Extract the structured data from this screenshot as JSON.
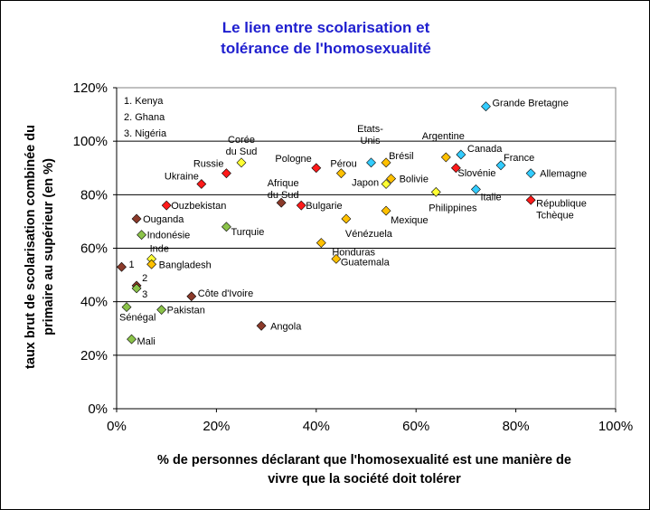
{
  "chart_data": {
    "type": "scatter",
    "title": [
      "Le lien entre scolarisation et",
      "tolérance de l'homosexualité"
    ],
    "xlabel": [
      "% de personnes déclarant que l'homosexualité est une manière de",
      "vivre que la société doit tolérer"
    ],
    "ylabel": [
      "taux brut de scolarisation combinée du",
      "primaire au supérieur (en %)"
    ],
    "xlim": [
      0,
      100
    ],
    "ylim": [
      0,
      120
    ],
    "x_ticks": [
      0,
      20,
      40,
      60,
      80,
      100
    ],
    "x_tick_labels": [
      "0%",
      "20%",
      "40%",
      "60%",
      "80%",
      "100%"
    ],
    "y_ticks": [
      0,
      20,
      40,
      60,
      80,
      100,
      120
    ],
    "y_tick_labels": [
      "0%",
      "20%",
      "40%",
      "60%",
      "80%",
      "100%",
      "120%"
    ],
    "grid": "horizontal",
    "legend_notes": [
      "1. Kenya",
      "2. Ghana",
      "3. Nigéria"
    ],
    "colors": {
      "dark_red": "#8b3a2a",
      "green": "#8bc34a",
      "red": "#ff1a1a",
      "orange": "#ffc000",
      "yellow": "#ffff33",
      "blue": "#33ccff"
    },
    "points": [
      {
        "label": "1",
        "x": 1,
        "y": 53,
        "color": "dark_red"
      },
      {
        "label": "2",
        "x": 4,
        "y": 46,
        "color": "dark_red"
      },
      {
        "label": "3",
        "x": 4,
        "y": 45,
        "color": "green"
      },
      {
        "label": "Ouganda",
        "x": 4,
        "y": 71,
        "color": "dark_red"
      },
      {
        "label": "Indonésie",
        "x": 5,
        "y": 65,
        "color": "green"
      },
      {
        "label": "Sénégal",
        "x": 2,
        "y": 38,
        "color": "green"
      },
      {
        "label": "Mali",
        "x": 3,
        "y": 26,
        "color": "green"
      },
      {
        "label": "Inde",
        "x": 7,
        "y": 56,
        "color": "yellow"
      },
      {
        "label": "Bangladesh",
        "x": 7,
        "y": 54,
        "color": "orange"
      },
      {
        "label": "Pakistan",
        "x": 9,
        "y": 37,
        "color": "green"
      },
      {
        "label": "Ouzbekistan",
        "x": 10,
        "y": 76,
        "color": "red"
      },
      {
        "label": "Côte d'Ivoire",
        "x": 15,
        "y": 42,
        "color": "dark_red"
      },
      {
        "label": "Ukraine",
        "x": 17,
        "y": 84,
        "color": "red"
      },
      {
        "label": "Russie",
        "x": 22,
        "y": 88,
        "color": "red"
      },
      {
        "label": "Turquie",
        "x": 22,
        "y": 68,
        "color": "green"
      },
      {
        "label": "Corée du Sud",
        "x": 25,
        "y": 92,
        "color": "yellow"
      },
      {
        "label": "Angola",
        "x": 29,
        "y": 31,
        "color": "dark_red"
      },
      {
        "label": "Afrique du Sud",
        "x": 33,
        "y": 77,
        "color": "dark_red"
      },
      {
        "label": "Bulgarie",
        "x": 37,
        "y": 76,
        "color": "red"
      },
      {
        "label": "Pologne",
        "x": 40,
        "y": 90,
        "color": "red"
      },
      {
        "label": "Honduras",
        "x": 41,
        "y": 62,
        "color": "orange"
      },
      {
        "label": "Guatemala",
        "x": 44,
        "y": 56,
        "color": "orange"
      },
      {
        "label": "Pérou",
        "x": 45,
        "y": 88,
        "color": "orange"
      },
      {
        "label": "Vénézuela",
        "x": 46,
        "y": 71,
        "color": "orange"
      },
      {
        "label": "Etats-Unis",
        "x": 51,
        "y": 92,
        "color": "blue"
      },
      {
        "label": "Japon",
        "x": 54,
        "y": 84,
        "color": "yellow"
      },
      {
        "label": "Brésil",
        "x": 54,
        "y": 92,
        "color": "orange"
      },
      {
        "label": "Mexique",
        "x": 54,
        "y": 74,
        "color": "orange"
      },
      {
        "label": "Bolivie",
        "x": 55,
        "y": 86,
        "color": "orange"
      },
      {
        "label": "Philippines",
        "x": 64,
        "y": 81,
        "color": "yellow"
      },
      {
        "label": "Argentine",
        "x": 66,
        "y": 94,
        "color": "orange"
      },
      {
        "label": "Slovénie",
        "x": 68,
        "y": 90,
        "color": "red"
      },
      {
        "label": "Canada",
        "x": 69,
        "y": 95,
        "color": "blue"
      },
      {
        "label": "Italie",
        "x": 72,
        "y": 82,
        "color": "blue"
      },
      {
        "label": "Grande Bretagne",
        "x": 74,
        "y": 113,
        "color": "blue"
      },
      {
        "label": "France",
        "x": 77,
        "y": 91,
        "color": "blue"
      },
      {
        "label": "Allemagne",
        "x": 83,
        "y": 88,
        "color": "blue"
      },
      {
        "label": "République Tchèque",
        "x": 83,
        "y": 78,
        "color": "red"
      }
    ]
  }
}
